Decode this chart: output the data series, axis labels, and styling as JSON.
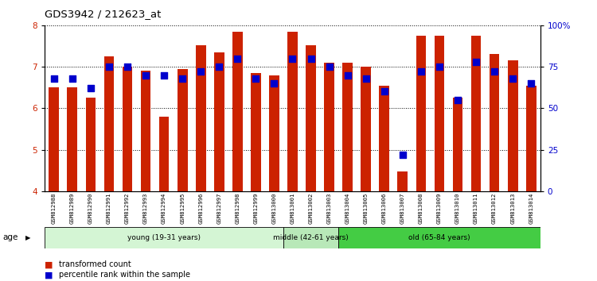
{
  "title": "GDS3942 / 212623_at",
  "samples": [
    "GSM812988",
    "GSM812989",
    "GSM812990",
    "GSM812991",
    "GSM812992",
    "GSM812993",
    "GSM812994",
    "GSM812995",
    "GSM812996",
    "GSM812997",
    "GSM812998",
    "GSM812999",
    "GSM813000",
    "GSM813001",
    "GSM813002",
    "GSM813003",
    "GSM813004",
    "GSM813005",
    "GSM813006",
    "GSM813007",
    "GSM813008",
    "GSM813009",
    "GSM813010",
    "GSM813011",
    "GSM813012",
    "GSM813013",
    "GSM813014"
  ],
  "red_values": [
    6.5,
    6.5,
    6.25,
    7.25,
    7.0,
    6.9,
    5.8,
    6.95,
    7.52,
    7.35,
    7.85,
    6.85,
    6.8,
    7.85,
    7.52,
    7.1,
    7.1,
    7.0,
    6.55,
    4.47,
    7.75,
    7.75,
    6.25,
    7.75,
    7.3,
    7.15,
    6.55
  ],
  "blue_values": [
    68,
    68,
    62,
    75,
    75,
    70,
    70,
    68,
    72,
    75,
    80,
    68,
    65,
    80,
    80,
    75,
    70,
    68,
    60,
    22,
    72,
    75,
    55,
    78,
    72,
    68,
    65
  ],
  "groups": [
    {
      "label": "young (19-31 years)",
      "start": 0,
      "end": 13,
      "color": "#d4f5d4"
    },
    {
      "label": "middle (42-61 years)",
      "start": 13,
      "end": 16,
      "color": "#b8e8b8"
    },
    {
      "label": "old (65-84 years)",
      "start": 16,
      "end": 27,
      "color": "#44cc44"
    }
  ],
  "ylim_left": [
    4,
    8
  ],
  "ylim_right": [
    0,
    100
  ],
  "yticks_left": [
    4,
    5,
    6,
    7,
    8
  ],
  "yticks_right": [
    0,
    25,
    50,
    75,
    100
  ],
  "ytick_labels_right": [
    "0",
    "25",
    "50",
    "75",
    "100%"
  ],
  "bar_color": "#cc2200",
  "dot_color": "#0000cc",
  "bar_width": 0.55,
  "dot_size": 28,
  "xlabel_bg": "#cccccc"
}
